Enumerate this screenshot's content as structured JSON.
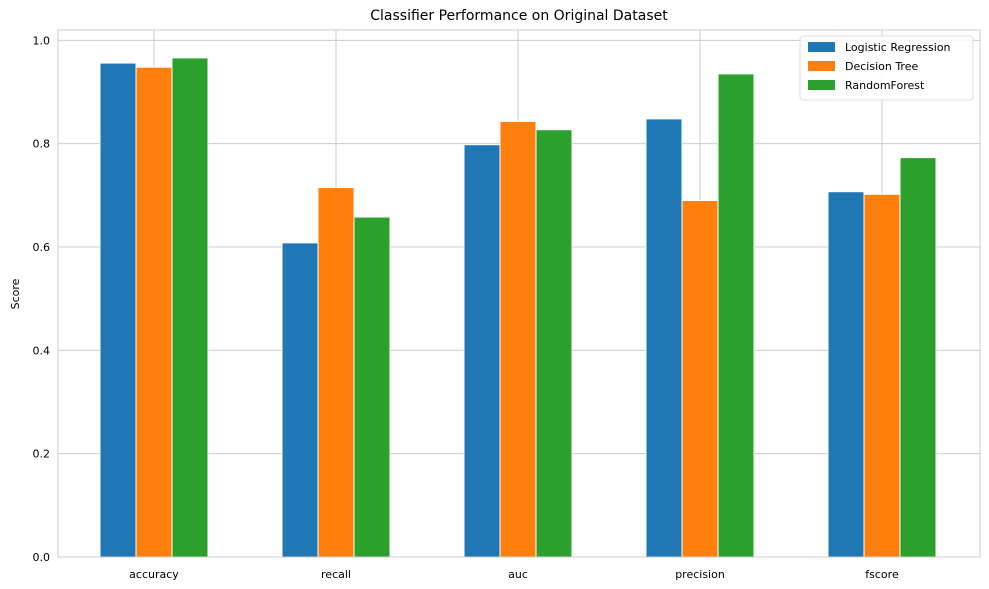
{
  "chart_data": {
    "type": "bar",
    "title": "Classifier Performance on Original Dataset",
    "xlabel": "",
    "ylabel": "Score",
    "categories": [
      "accuracy",
      "recall",
      "auc",
      "precision",
      "fscore"
    ],
    "series": [
      {
        "name": "Logistic Regression",
        "color": "#1f77b4",
        "values": [
          0.956,
          0.608,
          0.798,
          0.848,
          0.707
        ]
      },
      {
        "name": "Decision Tree",
        "color": "#ff7f0e",
        "values": [
          0.948,
          0.715,
          0.843,
          0.69,
          0.702
        ]
      },
      {
        "name": "RandomForest",
        "color": "#2ca02c",
        "values": [
          0.966,
          0.658,
          0.827,
          0.935,
          0.773
        ]
      }
    ],
    "ylim": [
      0,
      1.02
    ],
    "yticks": [
      "0.0",
      "0.2",
      "0.4",
      "0.6",
      "0.8",
      "1.0"
    ],
    "grid": true,
    "legend_position": "top-right"
  }
}
